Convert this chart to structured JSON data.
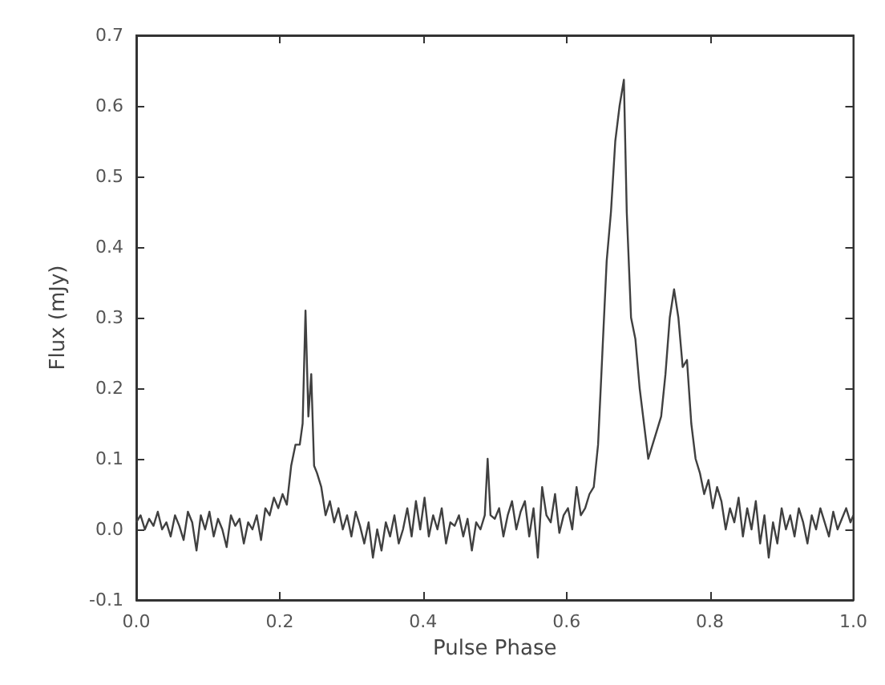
{
  "chart_data": {
    "type": "line",
    "xlabel": "Pulse Phase",
    "ylabel": "Flux (mJy)",
    "xlim": [
      0,
      1
    ],
    "ylim": [
      -0.1,
      0.7
    ],
    "xticks": [
      {
        "value": 0,
        "label": "0.0"
      },
      0.2,
      0.4,
      0.6,
      0.8,
      {
        "value": 1,
        "label": "1.0"
      }
    ],
    "yticks": [
      -0.1,
      {
        "value": 0,
        "label": "0.0"
      },
      0.1,
      0.2,
      0.3,
      0.4,
      0.5,
      0.6,
      0.7
    ],
    "grid": false,
    "marker": "none",
    "line_style": "solid",
    "series": [
      {
        "color": "#404040",
        "x": [
          0,
          0.006,
          0.012,
          0.018,
          0.024,
          0.03,
          0.036,
          0.042,
          0.048,
          0.054,
          0.06,
          0.066,
          0.072,
          0.078,
          0.084,
          0.09,
          0.096,
          0.102,
          0.108,
          0.114,
          0.12,
          0.126,
          0.132,
          0.138,
          0.144,
          0.15,
          0.156,
          0.162,
          0.168,
          0.174,
          0.18,
          0.186,
          0.192,
          0.198,
          0.204,
          0.21,
          0.216,
          0.222,
          0.228,
          0.232,
          0.236,
          0.24,
          0.244,
          0.248,
          0.252,
          0.258,
          0.264,
          0.27,
          0.276,
          0.282,
          0.288,
          0.294,
          0.3,
          0.306,
          0.312,
          0.318,
          0.324,
          0.33,
          0.336,
          0.342,
          0.348,
          0.354,
          0.36,
          0.366,
          0.372,
          0.378,
          0.384,
          0.39,
          0.396,
          0.402,
          0.408,
          0.414,
          0.42,
          0.426,
          0.432,
          0.438,
          0.444,
          0.45,
          0.456,
          0.462,
          0.468,
          0.474,
          0.48,
          0.486,
          0.49,
          0.494,
          0.5,
          0.506,
          0.512,
          0.518,
          0.524,
          0.53,
          0.536,
          0.542,
          0.548,
          0.554,
          0.56,
          0.566,
          0.572,
          0.578,
          0.584,
          0.59,
          0.596,
          0.602,
          0.608,
          0.614,
          0.62,
          0.626,
          0.632,
          0.638,
          0.644,
          0.65,
          0.656,
          0.662,
          0.668,
          0.674,
          0.68,
          0.684,
          0.69,
          0.696,
          0.702,
          0.708,
          0.714,
          0.72,
          0.726,
          0.732,
          0.738,
          0.744,
          0.75,
          0.756,
          0.762,
          0.768,
          0.774,
          0.78,
          0.786,
          0.792,
          0.798,
          0.804,
          0.81,
          0.816,
          0.822,
          0.828,
          0.834,
          0.84,
          0.846,
          0.852,
          0.858,
          0.864,
          0.87,
          0.876,
          0.882,
          0.888,
          0.894,
          0.9,
          0.906,
          0.912,
          0.918,
          0.924,
          0.93,
          0.936,
          0.942,
          0.948,
          0.954,
          0.96,
          0.966,
          0.972,
          0.978,
          0.984,
          0.99,
          0.996,
          1
        ],
        "values": [
          0.01,
          0.02,
          0.0,
          0.015,
          0.005,
          0.025,
          0.0,
          0.01,
          -0.01,
          0.02,
          0.005,
          -0.015,
          0.025,
          0.01,
          -0.03,
          0.02,
          0.0,
          0.025,
          -0.01,
          0.015,
          0.0,
          -0.025,
          0.02,
          0.005,
          0.015,
          -0.02,
          0.01,
          0.0,
          0.02,
          -0.015,
          0.03,
          0.02,
          0.045,
          0.03,
          0.05,
          0.035,
          0.09,
          0.12,
          0.12,
          0.15,
          0.31,
          0.16,
          0.22,
          0.09,
          0.08,
          0.06,
          0.02,
          0.04,
          0.01,
          0.03,
          0.0,
          0.02,
          -0.01,
          0.025,
          0.005,
          -0.02,
          0.01,
          -0.04,
          0.0,
          -0.03,
          0.01,
          -0.01,
          0.02,
          -0.02,
          0.0,
          0.03,
          -0.01,
          0.04,
          0.0,
          0.045,
          -0.01,
          0.02,
          0.0,
          0.03,
          -0.02,
          0.01,
          0.005,
          0.02,
          -0.01,
          0.015,
          -0.03,
          0.01,
          0.0,
          0.02,
          0.1,
          0.02,
          0.015,
          0.03,
          -0.01,
          0.02,
          0.04,
          0.0,
          0.025,
          0.04,
          -0.01,
          0.03,
          -0.04,
          0.06,
          0.02,
          0.01,
          0.05,
          -0.005,
          0.02,
          0.03,
          0.0,
          0.06,
          0.02,
          0.03,
          0.05,
          0.06,
          0.12,
          0.25,
          0.38,
          0.45,
          0.55,
          0.6,
          0.637,
          0.45,
          0.3,
          0.27,
          0.2,
          0.15,
          0.1,
          0.12,
          0.14,
          0.16,
          0.22,
          0.3,
          0.34,
          0.3,
          0.23,
          0.24,
          0.15,
          0.1,
          0.08,
          0.05,
          0.07,
          0.03,
          0.06,
          0.04,
          0.0,
          0.03,
          0.01,
          0.045,
          -0.01,
          0.03,
          0.0,
          0.04,
          -0.02,
          0.02,
          -0.04,
          0.01,
          -0.02,
          0.03,
          0.0,
          0.02,
          -0.01,
          0.03,
          0.01,
          -0.02,
          0.02,
          0.0,
          0.03,
          0.01,
          -0.01,
          0.025,
          0.0,
          0.015,
          0.03,
          0.01,
          0.02
        ]
      }
    ]
  }
}
